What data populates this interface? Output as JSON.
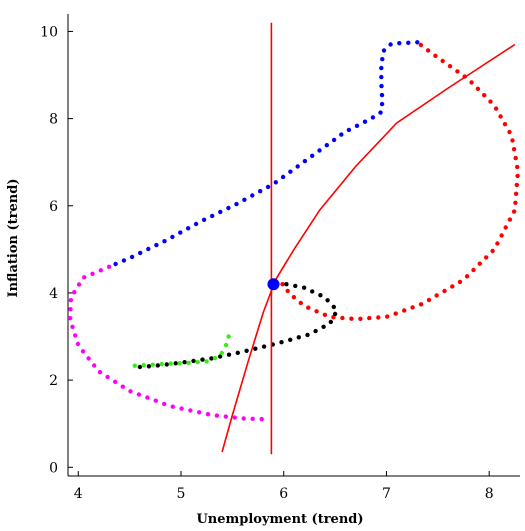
{
  "chart_data": {
    "type": "scatter",
    "title": "",
    "xlabel": "Unemployment (trend)",
    "ylabel": "Inflation (trend)",
    "xlim": [
      3.9,
      8.3
    ],
    "ylim": [
      -0.2,
      10.4
    ],
    "xticks": [
      "4",
      "5",
      "6",
      "7",
      "8"
    ],
    "yticks": [
      "0",
      "2",
      "4",
      "6",
      "8",
      "10"
    ],
    "grid": false,
    "legend": "none",
    "colors": {
      "blue": "#0000ff",
      "red": "#ff0000",
      "black": "#000000",
      "green": "#33ee11",
      "magenta": "#ff00ff"
    },
    "series": [
      {
        "color_key": "red",
        "style": "dotted",
        "points": [
          [
            5.9,
            4.2
          ],
          [
            6.0,
            4.2
          ],
          [
            6.05,
            4.0
          ],
          [
            6.2,
            3.7
          ],
          [
            6.45,
            3.45
          ],
          [
            6.7,
            3.4
          ],
          [
            7.0,
            3.45
          ],
          [
            7.35,
            3.75
          ],
          [
            7.75,
            4.3
          ],
          [
            8.05,
            5.0
          ],
          [
            8.25,
            5.9
          ],
          [
            8.28,
            6.8
          ],
          [
            8.22,
            7.6
          ],
          [
            8.05,
            8.3
          ],
          [
            7.8,
            8.9
          ],
          [
            7.5,
            9.4
          ],
          [
            7.3,
            9.75
          ]
        ]
      },
      {
        "color_key": "blue",
        "style": "dotted",
        "points": [
          [
            7.3,
            9.75
          ],
          [
            7.05,
            9.72
          ],
          [
            6.97,
            9.55
          ],
          [
            6.95,
            9.2
          ],
          [
            6.95,
            8.8
          ],
          [
            6.96,
            8.4
          ],
          [
            6.95,
            8.15
          ],
          [
            6.85,
            8.0
          ],
          [
            6.6,
            7.7
          ],
          [
            6.25,
            7.1
          ],
          [
            5.9,
            6.5
          ],
          [
            5.55,
            6.05
          ],
          [
            5.2,
            5.65
          ],
          [
            4.85,
            5.2
          ],
          [
            4.5,
            4.8
          ],
          [
            4.3,
            4.6
          ]
        ]
      },
      {
        "color_key": "magenta",
        "style": "dotted",
        "points": [
          [
            4.3,
            4.6
          ],
          [
            4.05,
            4.35
          ],
          [
            3.93,
            3.9
          ],
          [
            3.92,
            3.4
          ],
          [
            4.0,
            2.8
          ],
          [
            4.2,
            2.2
          ],
          [
            4.5,
            1.75
          ],
          [
            4.9,
            1.4
          ],
          [
            5.3,
            1.2
          ],
          [
            5.6,
            1.12
          ],
          [
            5.85,
            1.1
          ]
        ]
      },
      {
        "color_key": "black",
        "style": "dotted",
        "points": [
          [
            4.6,
            2.3
          ],
          [
            4.75,
            2.33
          ],
          [
            5.0,
            2.4
          ],
          [
            5.3,
            2.5
          ],
          [
            5.6,
            2.65
          ],
          [
            5.95,
            2.85
          ],
          [
            6.25,
            3.05
          ],
          [
            6.45,
            3.3
          ],
          [
            6.52,
            3.6
          ],
          [
            6.4,
            3.9
          ],
          [
            6.2,
            4.12
          ],
          [
            6.03,
            4.2
          ],
          [
            5.9,
            4.2
          ]
        ]
      },
      {
        "color_key": "green",
        "style": "dotted",
        "points": [
          [
            4.55,
            2.33
          ],
          [
            4.7,
            2.35
          ],
          [
            4.9,
            2.38
          ],
          [
            5.1,
            2.4
          ],
          [
            5.25,
            2.43
          ],
          [
            5.38,
            2.55
          ],
          [
            5.45,
            2.85
          ],
          [
            5.48,
            3.2
          ]
        ]
      },
      {
        "color_key": "red",
        "style": "line",
        "points": [
          [
            5.4,
            0.35
          ],
          [
            5.5,
            1.2
          ],
          [
            5.65,
            2.4
          ],
          [
            5.8,
            3.55
          ],
          [
            5.92,
            4.3
          ],
          [
            6.1,
            5.0
          ],
          [
            6.35,
            5.9
          ],
          [
            6.7,
            6.9
          ],
          [
            7.1,
            7.9
          ],
          [
            7.6,
            8.7
          ],
          [
            8.25,
            9.7
          ]
        ]
      },
      {
        "color_key": "red",
        "style": "line",
        "points": [
          [
            5.88,
            0.3
          ],
          [
            5.88,
            10.2
          ]
        ]
      }
    ],
    "highlight": {
      "x": 5.9,
      "y": 4.2,
      "color_key": "blue"
    }
  }
}
